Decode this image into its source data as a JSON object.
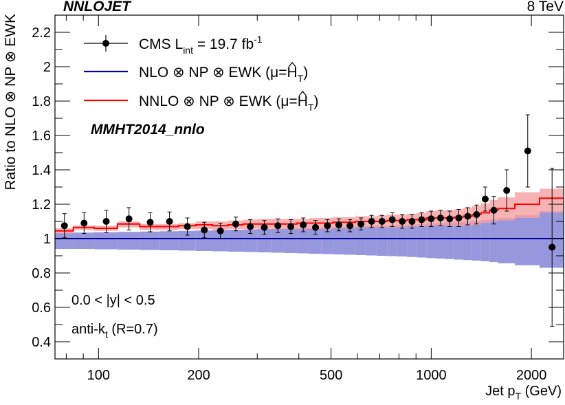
{
  "header": {
    "left": "NNLOJET",
    "right": "8 TeV"
  },
  "chart_data": {
    "type": "line",
    "title": "",
    "xlabel_main": "Jet p",
    "xlabel_sub": "T",
    "xlabel_unit": "(GeV)",
    "ylabel": "Ratio to NLO ⊗ NP ⊗ EWK",
    "xscale": "log",
    "xlim": [
      74,
      2500
    ],
    "ylim": [
      0.3,
      2.3
    ],
    "yticks": [
      0.4,
      0.6,
      0.8,
      1,
      1.2,
      1.4,
      1.6,
      1.8,
      2,
      2.2
    ],
    "ytick_labels": [
      "0.4",
      "0.6",
      "0.8",
      "1",
      "1.2",
      "1.4",
      "1.6",
      "1.8",
      "2",
      "2.2"
    ],
    "xticks": [
      100,
      200,
      500,
      1000,
      2000
    ],
    "xtick_labels": [
      "100",
      "200",
      "500",
      "1000",
      "2000"
    ],
    "legend": {
      "position": "top-left",
      "entries": [
        {
          "label": "CMS L",
          "sub": "int",
          "rest": " = 19.7 fb",
          "sup": "-1",
          "style": "marker"
        },
        {
          "label": "NLO ⊗ NP ⊗ EWK (μ=",
          "hat": "H",
          "sub": "T",
          "close": ")",
          "style": "line",
          "color": "#00009b"
        },
        {
          "label": "NNLO ⊗ NP ⊗ EWK (μ=",
          "hat": "H",
          "sub": "T",
          "close": ")",
          "style": "line",
          "color": "#ff0000"
        }
      ]
    },
    "annotations": {
      "pdf": "MMHT2014_nnlo",
      "rapidity": "0.0 < |y| < 0.5",
      "algo_main": "anti-k",
      "algo_sub": "t",
      "algo_rest": " (R=0.7)"
    },
    "colors": {
      "nlo_line": "#00009b",
      "nlo_band": "#9797dd",
      "nnlo_line": "#ff0000",
      "nnlo_band": "#f5a0a0",
      "data": "#000000"
    },
    "bin_edges": [
      74,
      84,
      97,
      114,
      133,
      153,
      174,
      196,
      220,
      245,
      272,
      300,
      330,
      362,
      395,
      430,
      468,
      507,
      548,
      592,
      638,
      686,
      737,
      790,
      846,
      905,
      967,
      1032,
      1101,
      1172,
      1248,
      1327,
      1410,
      1497,
      1588,
      1784,
      2116,
      2500
    ],
    "series": [
      {
        "name": "CMS data",
        "x": [
          79,
          90.5,
          105.5,
          123.5,
          143,
          163.5,
          185,
          208,
          232.5,
          258.5,
          286,
          315,
          346,
          378.5,
          412.5,
          449,
          487.5,
          527.5,
          570,
          615,
          662,
          711.5,
          763.5,
          818,
          875.5,
          936,
          999.5,
          1066.5,
          1136.5,
          1210,
          1287.5,
          1368.5,
          1453.5,
          1542.5,
          1686,
          1950,
          2308
        ],
        "values": [
          1.075,
          1.09,
          1.1,
          1.115,
          1.095,
          1.1,
          1.07,
          1.05,
          1.045,
          1.085,
          1.07,
          1.065,
          1.075,
          1.07,
          1.08,
          1.065,
          1.075,
          1.08,
          1.075,
          1.085,
          1.1,
          1.1,
          1.11,
          1.1,
          1.1,
          1.11,
          1.115,
          1.12,
          1.115,
          1.12,
          1.13,
          1.14,
          1.23,
          1.165,
          1.28,
          1.51,
          0.95
        ],
        "err": [
          0.07,
          0.06,
          0.065,
          0.065,
          0.055,
          0.055,
          0.05,
          0.045,
          0.045,
          0.04,
          0.04,
          0.04,
          0.04,
          0.04,
          0.04,
          0.04,
          0.035,
          0.035,
          0.035,
          0.035,
          0.035,
          0.035,
          0.04,
          0.04,
          0.04,
          0.04,
          0.045,
          0.045,
          0.045,
          0.05,
          0.05,
          0.055,
          0.07,
          0.08,
          0.12,
          0.21,
          0.46
        ]
      },
      {
        "name": "NNLO ⊗ NP ⊗ EWK",
        "values": [
          1.045,
          1.065,
          1.06,
          1.085,
          1.07,
          1.07,
          1.075,
          1.08,
          1.075,
          1.08,
          1.085,
          1.085,
          1.085,
          1.085,
          1.09,
          1.09,
          1.09,
          1.095,
          1.095,
          1.1,
          1.1,
          1.1,
          1.105,
          1.105,
          1.11,
          1.11,
          1.12,
          1.12,
          1.12,
          1.125,
          1.13,
          1.14,
          1.15,
          1.165,
          1.175,
          1.2,
          1.235
        ],
        "band_low": [
          1.03,
          1.05,
          1.045,
          1.065,
          1.05,
          1.05,
          1.055,
          1.055,
          1.05,
          1.055,
          1.055,
          1.055,
          1.055,
          1.055,
          1.055,
          1.055,
          1.055,
          1.06,
          1.06,
          1.065,
          1.065,
          1.065,
          1.065,
          1.065,
          1.07,
          1.07,
          1.075,
          1.075,
          1.075,
          1.075,
          1.075,
          1.08,
          1.09,
          1.1,
          1.105,
          1.12,
          1.15
        ],
        "band_high": [
          1.06,
          1.075,
          1.075,
          1.1,
          1.085,
          1.085,
          1.09,
          1.1,
          1.1,
          1.105,
          1.11,
          1.115,
          1.115,
          1.115,
          1.115,
          1.12,
          1.12,
          1.125,
          1.125,
          1.13,
          1.13,
          1.135,
          1.14,
          1.14,
          1.145,
          1.15,
          1.16,
          1.165,
          1.165,
          1.17,
          1.18,
          1.19,
          1.205,
          1.225,
          1.24,
          1.27,
          1.29
        ]
      },
      {
        "name": "NLO ⊗ NP ⊗ EWK",
        "values": [
          1,
          1,
          1,
          1,
          1,
          1,
          1,
          1,
          1,
          1,
          1,
          1,
          1,
          1,
          1,
          1,
          1,
          1,
          1,
          1,
          1,
          1,
          1,
          1,
          1,
          1,
          1,
          1,
          1,
          1,
          1,
          1,
          1,
          1,
          1,
          1,
          1
        ],
        "band_low": [
          0.94,
          0.94,
          0.938,
          0.936,
          0.934,
          0.932,
          0.93,
          0.928,
          0.926,
          0.924,
          0.922,
          0.92,
          0.918,
          0.916,
          0.914,
          0.912,
          0.91,
          0.908,
          0.906,
          0.904,
          0.902,
          0.9,
          0.898,
          0.896,
          0.893,
          0.89,
          0.887,
          0.884,
          0.881,
          0.878,
          0.875,
          0.872,
          0.868,
          0.864,
          0.856,
          0.845,
          0.83
        ],
        "band_high": [
          1.035,
          1.035,
          1.037,
          1.039,
          1.041,
          1.043,
          1.045,
          1.047,
          1.049,
          1.051,
          1.053,
          1.055,
          1.057,
          1.059,
          1.061,
          1.063,
          1.065,
          1.067,
          1.069,
          1.071,
          1.073,
          1.075,
          1.077,
          1.079,
          1.082,
          1.085,
          1.088,
          1.091,
          1.094,
          1.097,
          1.1,
          1.104,
          1.108,
          1.113,
          1.12,
          1.135,
          1.16
        ]
      }
    ]
  }
}
